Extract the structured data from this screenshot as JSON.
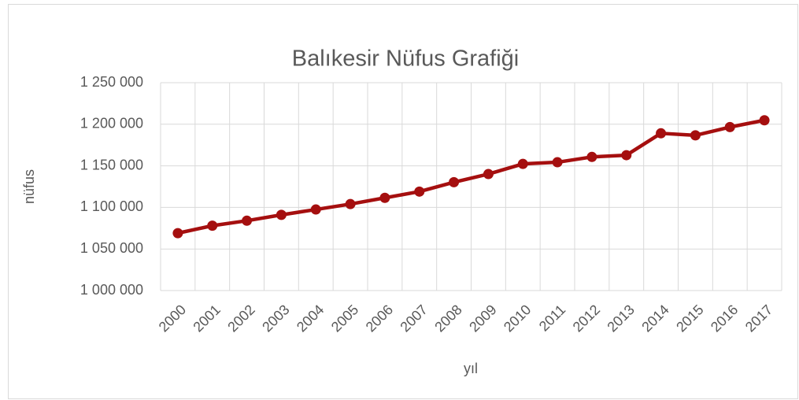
{
  "chart_data": {
    "type": "line",
    "title": "Balıkesir Nüfus Grafiği",
    "x_label": "yıl",
    "y_label": "nüfus",
    "categories": [
      "2000",
      "2001",
      "2002",
      "2003",
      "2004",
      "2005",
      "2006",
      "2007",
      "2008",
      "2009",
      "2010",
      "2011",
      "2012",
      "2013",
      "2014",
      "2015",
      "2016",
      "2017"
    ],
    "series": [
      {
        "name": "nüfus",
        "color": "#a50f0f",
        "values": [
          1069000,
          1078000,
          1084000,
          1091000,
          1097500,
          1104000,
          1111500,
          1119000,
          1130300,
          1140100,
          1152300,
          1154300,
          1160700,
          1162800,
          1189100,
          1186700,
          1196600,
          1204800
        ]
      }
    ],
    "ylim": [
      1000000,
      1250000
    ],
    "yticks": [
      {
        "value": 1000000,
        "label": "1 000 000"
      },
      {
        "value": 1050000,
        "label": "1 050 000"
      },
      {
        "value": 1100000,
        "label": "1 100 000"
      },
      {
        "value": 1150000,
        "label": "1 150 000"
      },
      {
        "value": 1200000,
        "label": "1 200 000"
      },
      {
        "value": 1250000,
        "label": "1 250 000"
      }
    ],
    "grid": true
  }
}
